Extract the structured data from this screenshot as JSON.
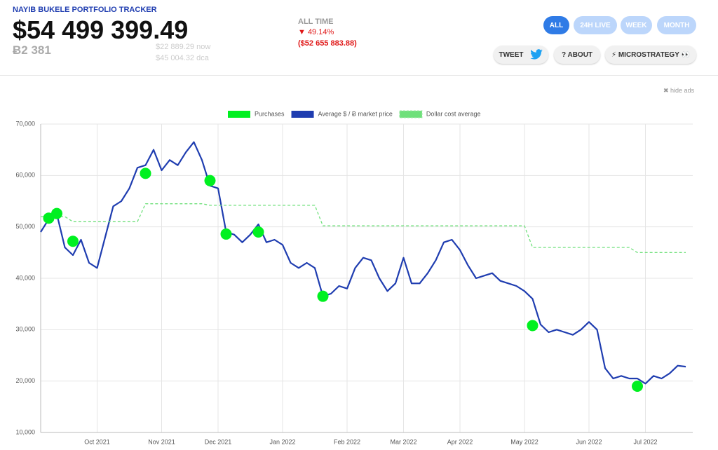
{
  "header": {
    "title": "NAYIB BUKELE PORTFOLIO TRACKER",
    "value": "$54 499 399.49",
    "btc": "Ƀ2 381",
    "now": "$22 889.29 now",
    "dca": "$45 004.32 dca",
    "period_label": "ALL TIME",
    "change_pct": "▼ 49.14%",
    "change_abs": "($52 655 883.88)"
  },
  "buttons": {
    "ranges": [
      "ALL",
      "24H LIVE",
      "WEEK",
      "MONTH"
    ],
    "links": [
      "TWEET",
      "? ABOUT",
      "⚡ MICROSTRATEGY 👀"
    ]
  },
  "hide_ads": "✖ hide ads",
  "chart_data": {
    "type": "line",
    "categories": [
      null,
      null,
      null,
      null,
      null,
      null,
      null,
      "Oct 2021",
      null,
      null,
      null,
      null,
      null,
      null,
      null,
      "Nov 2021",
      null,
      null,
      null,
      null,
      null,
      null,
      "Dec 2021",
      null,
      null,
      null,
      null,
      null,
      null,
      null,
      "Jan 2022",
      null,
      null,
      null,
      null,
      null,
      null,
      null,
      "Feb 2022",
      null,
      null,
      null,
      null,
      null,
      null,
      "Mar 2022",
      null,
      null,
      null,
      null,
      null,
      null,
      "Apr 2022",
      null,
      null,
      null,
      null,
      null,
      null,
      null,
      "May 2022",
      null,
      null,
      null,
      null,
      null,
      null,
      null,
      "Jun 2022",
      null,
      null,
      null,
      null,
      null,
      null,
      "Jul 2022",
      null,
      null,
      null,
      null,
      null
    ],
    "ylim": [
      10000,
      70000
    ],
    "yticks": [
      {
        "value": 10000,
        "label": "10,000"
      },
      {
        "value": 20000,
        "label": "20,000"
      },
      {
        "value": 30000,
        "label": "30,000"
      },
      {
        "value": 40000,
        "label": "40,000"
      },
      {
        "value": 50000,
        "label": "50,000"
      },
      {
        "value": 60000,
        "label": "60,000"
      },
      {
        "value": 70000,
        "label": "70,000"
      }
    ],
    "grid": true,
    "legend": "top",
    "series": [
      {
        "name": "Purchases",
        "color": "#00f020",
        "style": "points",
        "values": [
          null,
          51700,
          52600,
          null,
          47200,
          null,
          null,
          null,
          null,
          null,
          null,
          null,
          null,
          60400,
          null,
          null,
          null,
          null,
          null,
          null,
          null,
          59000,
          null,
          48600,
          null,
          null,
          null,
          49000,
          null,
          null,
          null,
          null,
          null,
          null,
          null,
          36500,
          null,
          null,
          null,
          null,
          null,
          null,
          null,
          null,
          null,
          null,
          null,
          null,
          null,
          null,
          null,
          null,
          null,
          null,
          null,
          null,
          null,
          null,
          null,
          null,
          null,
          30800,
          null,
          null,
          null,
          null,
          null,
          null,
          null,
          null,
          null,
          null,
          null,
          null,
          19000,
          null,
          null,
          null,
          null,
          null,
          null
        ]
      },
      {
        "name": "Average $ / Ƀ market price",
        "color": "#1f3db0",
        "style": "line",
        "values": [
          49000,
          51500,
          52500,
          46000,
          44500,
          47500,
          43000,
          42000,
          48000,
          54000,
          55000,
          57500,
          61500,
          62000,
          65000,
          61000,
          63000,
          62000,
          64500,
          66500,
          63000,
          58000,
          57500,
          49000,
          48500,
          47000,
          48500,
          50500,
          47000,
          47500,
          46500,
          43000,
          42000,
          43000,
          42000,
          36500,
          37000,
          38500,
          38000,
          42000,
          44000,
          43500,
          40000,
          37500,
          39000,
          44000,
          39000,
          39000,
          41000,
          43500,
          47000,
          47500,
          45500,
          42500,
          40000,
          40500,
          41000,
          39500,
          39000,
          38500,
          37500,
          36000,
          31000,
          29500,
          30000,
          29500,
          29000,
          30000,
          31500,
          30000,
          22500,
          20500,
          21000,
          20500,
          20500,
          19500,
          21000,
          20500,
          21500,
          23000,
          22800
        ]
      },
      {
        "name": "Dollar cost average",
        "color": "#6ee07a",
        "style": "dashed",
        "values": [
          52000,
          52000,
          52000,
          52000,
          51000,
          51000,
          51000,
          51000,
          51000,
          51000,
          51000,
          51000,
          51000,
          54500,
          54500,
          54500,
          54500,
          54500,
          54500,
          54500,
          54500,
          54200,
          54200,
          54200,
          54200,
          54200,
          54200,
          54200,
          54200,
          54200,
          54200,
          54200,
          54200,
          54200,
          54200,
          50200,
          50200,
          50200,
          50200,
          50200,
          50200,
          50200,
          50200,
          50200,
          50200,
          50200,
          50200,
          50200,
          50200,
          50200,
          50200,
          50200,
          50200,
          50200,
          50200,
          50200,
          50200,
          50200,
          50200,
          50200,
          50200,
          46000,
          46000,
          46000,
          46000,
          46000,
          46000,
          46000,
          46000,
          46000,
          46000,
          46000,
          46000,
          46000,
          45000,
          45000,
          45000,
          45000,
          45000,
          45000,
          45000
        ]
      }
    ]
  }
}
